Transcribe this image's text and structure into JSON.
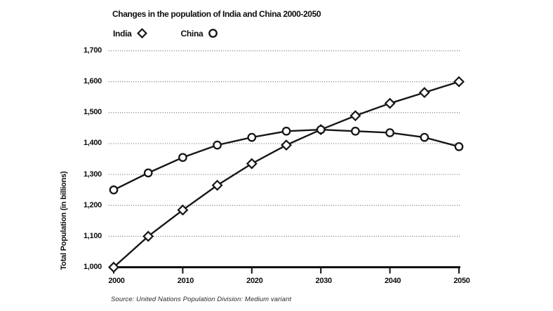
{
  "window": {
    "background": "#ffffff"
  },
  "chart_data": {
    "type": "line",
    "title": "Changes in the population of India and China 2000-2050",
    "ylabel": "Total Population (in billions)",
    "xlabel": "",
    "source_note": "Source: United Nations Population Division: Medium variant",
    "x": [
      2000,
      2005,
      2010,
      2015,
      2020,
      2025,
      2030,
      2035,
      2040,
      2045,
      2050
    ],
    "series": [
      {
        "name": "India",
        "marker": "diamond",
        "color": "#161616",
        "values": [
          1000,
          1100,
          1185,
          1265,
          1335,
          1395,
          1445,
          1490,
          1530,
          1565,
          1600
        ]
      },
      {
        "name": "China",
        "marker": "circle",
        "color": "#161616",
        "values": [
          1250,
          1305,
          1355,
          1395,
          1420,
          1440,
          1445,
          1440,
          1435,
          1420,
          1390
        ]
      }
    ],
    "xlim": [
      2000,
      2050
    ],
    "ylim": [
      1000,
      1700
    ],
    "x_tick_labels": [
      "2000",
      "2010",
      "2020",
      "2030",
      "2040",
      "2050"
    ],
    "y_tick_labels": [
      "1,000",
      "1,100",
      "1,200",
      "1,300",
      "1,400",
      "1,500",
      "1,600",
      "1,700"
    ],
    "grid": "horizontal-dotted",
    "legend_position": "top-left",
    "colors": {
      "line": "#161616",
      "grid": "#7d6a6a",
      "axis": "#111111",
      "marker_fill": "#ffffff",
      "text": "#111111"
    }
  }
}
